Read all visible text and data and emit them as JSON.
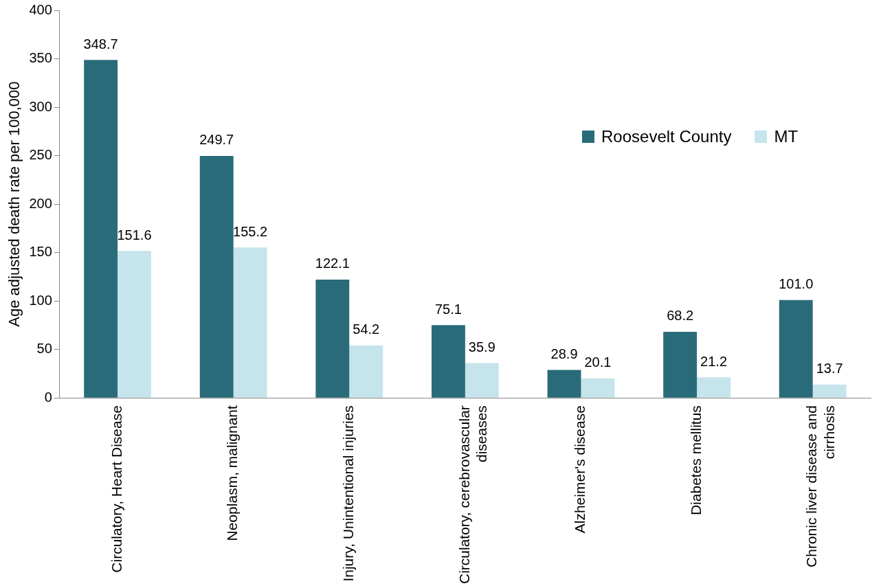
{
  "chart_data": {
    "type": "bar",
    "ylabel": "Age adjusted death rate per 100,000",
    "categories": [
      "Circulatory, Heart Disease",
      "Neoplasm, malignant",
      "Injury, Unintentional injuries",
      "Circulatory, cerebrovascular diseases",
      "Alzheimer's disease",
      "Diabetes mellitus",
      "Chronic liver disease and cirrhosis"
    ],
    "series": [
      {
        "name": "Roosevelt County",
        "color": "#2a6b7a",
        "values": [
          348.7,
          249.7,
          122.1,
          75.1,
          28.9,
          68.2,
          101.0
        ],
        "value_labels": [
          "348.7",
          "249.7",
          "122.1",
          "75.1",
          "28.9",
          "68.2",
          "101.0"
        ]
      },
      {
        "name": "MT",
        "color": "#c5e4ec",
        "values": [
          151.6,
          155.2,
          54.2,
          35.9,
          20.1,
          21.2,
          13.7
        ],
        "value_labels": [
          "151.6",
          "155.2",
          "54.2",
          "35.9",
          "20.1",
          "21.2",
          "13.7"
        ]
      }
    ],
    "ylim": [
      0,
      400
    ],
    "yticks": [
      0,
      50,
      100,
      150,
      200,
      250,
      300,
      350,
      400
    ],
    "grid": false,
    "legend": "right"
  }
}
